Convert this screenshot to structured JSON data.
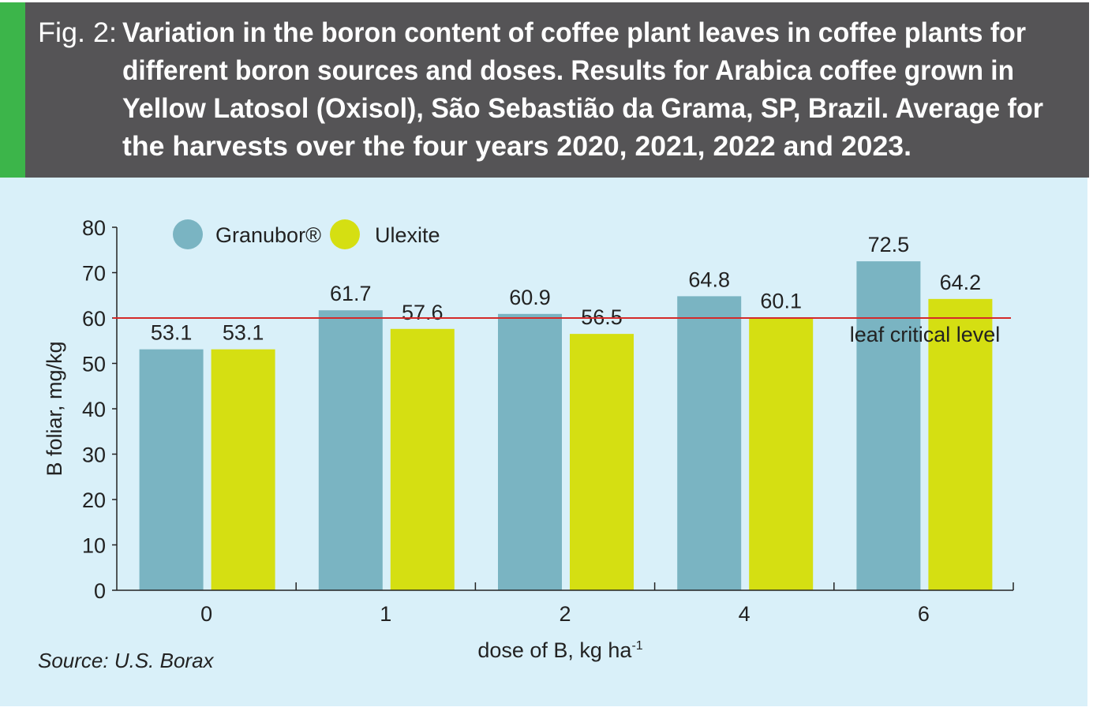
{
  "header": {
    "fig_label": "Fig. 2:",
    "title_lines": [
      "Variation in the boron content of coffee plant leaves in coffee plants for",
      "different boron sources and doses. Results for Arabica coffee grown in",
      "Yellow Latosol (Oxisol), São Sebastião da Grama, SP, Brazil. Average for",
      "the harvests over the four years 2020, 2021, 2022 and 2023."
    ]
  },
  "source": "Source: U.S. Borax",
  "colors": {
    "header_bg": "#555456",
    "accent_green": "#3cb54a",
    "panel_bg": "#d9f0f9",
    "granubor": "#7ab4c2",
    "ulexite": "#d5df12",
    "critical_line": "#d42a2a"
  },
  "chart_data": {
    "type": "bar",
    "categories": [
      "0",
      "1",
      "2",
      "4",
      "6"
    ],
    "series": [
      {
        "name": "Granubor®",
        "values": [
          53.1,
          61.7,
          60.9,
          64.8,
          72.5
        ]
      },
      {
        "name": "Ulexite",
        "values": [
          53.1,
          57.6,
          56.5,
          60.1,
          64.2
        ]
      }
    ],
    "value_labels": [
      [
        "53.1",
        "61.7",
        "60.9",
        "64.8",
        "72.5"
      ],
      [
        "53.1",
        "57.6",
        "56.5",
        "60.1",
        "64.2"
      ]
    ],
    "xlabel": "dose of B, kg ha",
    "xlabel_sup": "-1",
    "ylabel": "B foliar, mg/kg",
    "ylim": [
      0,
      80
    ],
    "yticks": [
      "0",
      "10",
      "20",
      "30",
      "40",
      "50",
      "60",
      "70",
      "80"
    ],
    "reference_line": {
      "value": 60,
      "label": "leaf critical level"
    },
    "legend_placement": "top-left",
    "grid": false
  }
}
